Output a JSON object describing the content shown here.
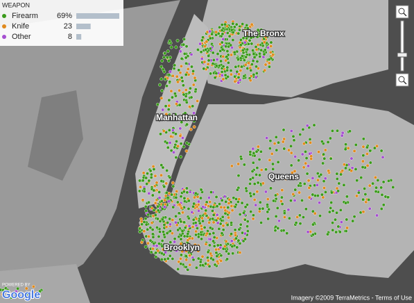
{
  "legend": {
    "title": "WEAPON",
    "categories": [
      "Firearm",
      "Knife",
      "Other"
    ],
    "colors": [
      "#3a9a1a",
      "#e08a1e",
      "#a54fd0"
    ],
    "values": [
      69,
      23,
      8
    ],
    "value_labels": [
      "69%",
      "23",
      "8"
    ]
  },
  "places": [
    "The Bronx",
    "Manhattan",
    "Queens",
    "Brooklyn"
  ],
  "attribution": {
    "powered": "POWERED BY",
    "brand": "Google",
    "imagery": "Imagery ©2009 TerraMetrics - Terms of Use"
  }
}
